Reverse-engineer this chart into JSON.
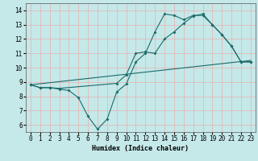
{
  "xlabel": "Humidex (Indice chaleur)",
  "bg_color": "#c5e8e8",
  "grid_color": "#e8b0b0",
  "line_color": "#1a6b6b",
  "xlim_min": -0.5,
  "xlim_max": 23.5,
  "ylim_min": 5.5,
  "ylim_max": 14.5,
  "xticks": [
    0,
    1,
    2,
    3,
    4,
    5,
    6,
    7,
    8,
    9,
    10,
    11,
    12,
    13,
    14,
    15,
    16,
    17,
    18,
    19,
    20,
    21,
    22,
    23
  ],
  "yticks": [
    6,
    7,
    8,
    9,
    10,
    11,
    12,
    13,
    14
  ],
  "line1": {
    "x": [
      0,
      1,
      2,
      3,
      4,
      5,
      6,
      7,
      8,
      9,
      10,
      11,
      12,
      13,
      14,
      15,
      16,
      17,
      18,
      19,
      20,
      21,
      22,
      23
    ],
    "y": [
      8.8,
      8.6,
      8.6,
      8.5,
      8.4,
      7.9,
      6.6,
      5.7,
      6.4,
      8.3,
      8.85,
      10.4,
      11.0,
      12.5,
      13.75,
      13.65,
      13.35,
      13.65,
      13.65,
      13.0,
      12.3,
      11.5,
      10.4,
      10.4
    ]
  },
  "line2": {
    "x": [
      0,
      1,
      2,
      3,
      9,
      10,
      11,
      12,
      13,
      14,
      15,
      16,
      17,
      18,
      19,
      20,
      21,
      22,
      23
    ],
    "y": [
      8.8,
      8.6,
      8.6,
      8.55,
      8.9,
      9.5,
      11.0,
      11.1,
      11.0,
      12.0,
      12.5,
      13.1,
      13.6,
      13.75,
      13.0,
      12.3,
      11.5,
      10.4,
      10.4
    ]
  },
  "line3": {
    "x": [
      0,
      23
    ],
    "y": [
      8.8,
      10.5
    ]
  }
}
